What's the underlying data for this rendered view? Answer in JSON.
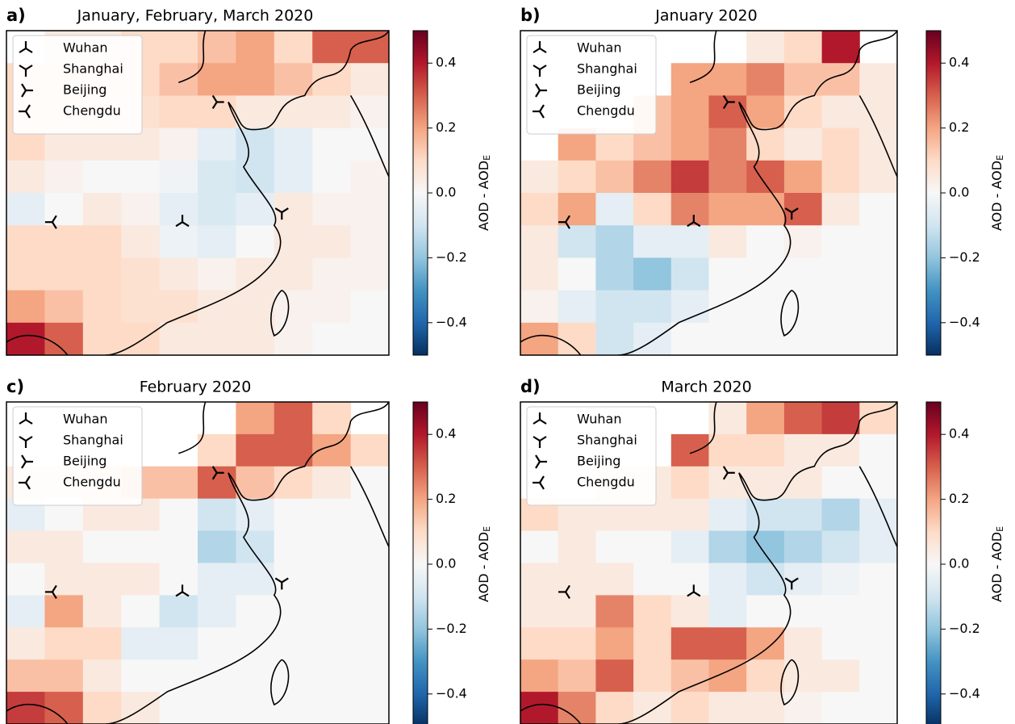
{
  "chart_data": [
    {
      "type": "heatmap",
      "panel": "a)",
      "title": "January, February, March 2020",
      "legend": [
        "Wuhan",
        "Shanghai",
        "Beijing",
        "Chengdu"
      ],
      "cbar_label": "AOD - AOD",
      "cbar_label_sub": "E",
      "clim": [
        -0.5,
        0.5
      ],
      "cticks": [
        {
          "value": -0.4,
          "label": "−0.4"
        },
        {
          "value": -0.2,
          "label": "−0.2"
        },
        {
          "value": 0,
          "label": "0.0"
        },
        {
          "value": 0.2,
          "label": "0.2"
        },
        {
          "value": 0.4,
          "label": "0.4"
        }
      ],
      "colormap": [
        "#053061",
        "#2166ac",
        "#4393c3",
        "#92c5de",
        "#d1e5f0",
        "#f7f7f7",
        "#fddbc7",
        "#f4a582",
        "#d6604d",
        "#b2182b",
        "#67001f"
      ],
      "values": [
        [
          null,
          0.05,
          0.05,
          0.1,
          0.1,
          0.15,
          0.2,
          0.1,
          0.3,
          0.3
        ],
        [
          0.1,
          0.1,
          0.1,
          0.1,
          0.15,
          0.2,
          0.2,
          0.15,
          0.1,
          0.05
        ],
        [
          0.1,
          0.1,
          0.1,
          0.08,
          0.1,
          0.1,
          0.05,
          0.05,
          0.05,
          0.02
        ],
        [
          0.1,
          0.05,
          0.05,
          0.05,
          0.02,
          -0.05,
          -0.1,
          -0.05,
          0,
          0
        ],
        [
          0.05,
          0.02,
          0,
          0,
          -0.02,
          -0.08,
          -0.1,
          -0.05,
          0,
          0.02
        ],
        [
          -0.05,
          0,
          0.05,
          0.02,
          -0.05,
          -0.08,
          -0.05,
          0.05,
          0.02,
          0.02
        ],
        [
          0.1,
          0.1,
          0.1,
          0.05,
          -0.03,
          -0.05,
          0,
          0.05,
          0.05,
          0.02
        ],
        [
          0.1,
          0.1,
          0.1,
          0.08,
          0.05,
          0.02,
          0.05,
          0.05,
          0.02,
          0.02
        ],
        [
          0.2,
          0.15,
          0.1,
          0.08,
          0.08,
          0.05,
          0.05,
          0.02,
          0.02,
          0
        ],
        [
          0.4,
          0.3,
          0.1,
          0.1,
          0.05,
          0.05,
          0.05,
          0.02,
          0,
          0
        ]
      ]
    },
    {
      "type": "heatmap",
      "panel": "b)",
      "title": "January 2020",
      "legend": [
        "Wuhan",
        "Shanghai",
        "Beijing",
        "Chengdu"
      ],
      "cbar_label": "AOD - AOD",
      "cbar_label_sub": "E",
      "clim": [
        -0.5,
        0.5
      ],
      "cticks": [
        {
          "value": -0.4,
          "label": "−0.4"
        },
        {
          "value": -0.2,
          "label": "−0.2"
        },
        {
          "value": 0,
          "label": "0.0"
        },
        {
          "value": 0.2,
          "label": "0.2"
        },
        {
          "value": 0.4,
          "label": "0.4"
        }
      ],
      "colormap": [
        "#053061",
        "#2166ac",
        "#4393c3",
        "#92c5de",
        "#d1e5f0",
        "#f7f7f7",
        "#fddbc7",
        "#f4a582",
        "#d6604d",
        "#b2182b",
        "#67001f"
      ],
      "values": [
        [
          null,
          null,
          null,
          null,
          null,
          null,
          0.05,
          0.1,
          0.4,
          null
        ],
        [
          null,
          null,
          null,
          null,
          0.2,
          0.2,
          0.25,
          0.15,
          0.15,
          0.05
        ],
        [
          null,
          null,
          null,
          0.15,
          0.2,
          0.3,
          0.2,
          0.1,
          0.05,
          0.05
        ],
        [
          null,
          0.2,
          0.1,
          0.15,
          0.2,
          0.25,
          0.1,
          0.05,
          0.1,
          0.05
        ],
        [
          0.05,
          0.1,
          0.15,
          0.25,
          0.35,
          0.25,
          0.3,
          0.2,
          0.1,
          0.05
        ],
        [
          0.1,
          0.2,
          -0.05,
          0.1,
          0.25,
          0.2,
          0.2,
          0.3,
          0.05,
          0
        ],
        [
          0.05,
          -0.1,
          -0.15,
          -0.05,
          -0.05,
          0.05,
          0,
          0.02,
          0,
          0
        ],
        [
          0.05,
          0,
          -0.15,
          -0.2,
          -0.1,
          0,
          0,
          0,
          0,
          0
        ],
        [
          0.02,
          -0.05,
          -0.1,
          -0.1,
          -0.05,
          0,
          0,
          0,
          0,
          0
        ],
        [
          0.2,
          0.1,
          -0.1,
          -0.05,
          0,
          0,
          0,
          0,
          0,
          0
        ]
      ]
    },
    {
      "type": "heatmap",
      "panel": "c)",
      "title": "February 2020",
      "legend": [
        "Wuhan",
        "Shanghai",
        "Beijing",
        "Chengdu"
      ],
      "cbar_label": "AOD - AOD",
      "cbar_label_sub": "E",
      "clim": [
        -0.5,
        0.5
      ],
      "cticks": [
        {
          "value": -0.4,
          "label": "−0.4"
        },
        {
          "value": -0.2,
          "label": "−0.2"
        },
        {
          "value": 0,
          "label": "0.0"
        },
        {
          "value": 0.2,
          "label": "0.2"
        },
        {
          "value": 0.4,
          "label": "0.4"
        }
      ],
      "colormap": [
        "#053061",
        "#2166ac",
        "#4393c3",
        "#92c5de",
        "#d1e5f0",
        "#f7f7f7",
        "#fddbc7",
        "#f4a582",
        "#d6604d",
        "#b2182b",
        "#67001f"
      ],
      "values": [
        [
          null,
          null,
          null,
          null,
          null,
          null,
          0.2,
          0.3,
          0.1,
          null
        ],
        [
          null,
          null,
          null,
          null,
          null,
          0.1,
          0.3,
          0.3,
          0.2,
          0.1
        ],
        [
          0.05,
          0.05,
          0.1,
          0.15,
          0.15,
          0.3,
          0.15,
          0.1,
          0.05,
          0
        ],
        [
          -0.05,
          0,
          0.05,
          0.05,
          0,
          -0.1,
          -0.05,
          0,
          0,
          0
        ],
        [
          0.05,
          0.05,
          0,
          0,
          0,
          -0.15,
          -0.1,
          0,
          0,
          0
        ],
        [
          0,
          0.05,
          0.05,
          0.05,
          0,
          -0.05,
          -0.05,
          0,
          0,
          0
        ],
        [
          -0.05,
          0.2,
          0.05,
          0,
          -0.1,
          -0.05,
          0,
          0,
          0,
          0
        ],
        [
          0.05,
          0.1,
          0.1,
          -0.05,
          -0.05,
          0,
          0,
          0,
          0,
          0
        ],
        [
          0.15,
          0.15,
          0.05,
          0,
          0,
          0,
          0,
          0,
          0,
          0
        ],
        [
          0.35,
          0.3,
          0.1,
          0.05,
          0,
          0,
          0,
          0,
          0,
          0
        ]
      ]
    },
    {
      "type": "heatmap",
      "panel": "d)",
      "title": "March 2020",
      "legend": [
        "Wuhan",
        "Shanghai",
        "Beijing",
        "Chengdu"
      ],
      "cbar_label": "AOD - AOD",
      "cbar_label_sub": "E",
      "clim": [
        -0.5,
        0.5
      ],
      "cticks": [
        {
          "value": -0.4,
          "label": "−0.4"
        },
        {
          "value": -0.2,
          "label": "−0.2"
        },
        {
          "value": 0,
          "label": "0.0"
        },
        {
          "value": 0.2,
          "label": "0.2"
        },
        {
          "value": 0.4,
          "label": "0.4"
        }
      ],
      "colormap": [
        "#053061",
        "#2166ac",
        "#4393c3",
        "#92c5de",
        "#d1e5f0",
        "#f7f7f7",
        "#fddbc7",
        "#f4a582",
        "#d6604d",
        "#b2182b",
        "#67001f"
      ],
      "values": [
        [
          null,
          null,
          null,
          null,
          null,
          0.05,
          0.2,
          0.3,
          0.35,
          0.1
        ],
        [
          null,
          null,
          null,
          null,
          0.3,
          0.1,
          0.1,
          0.05,
          0.05,
          0
        ],
        [
          null,
          null,
          0.05,
          0.05,
          0.1,
          0.05,
          0.05,
          0.05,
          0,
          0
        ],
        [
          0.1,
          0.05,
          0.05,
          0.05,
          0.05,
          -0.05,
          -0.1,
          -0.1,
          -0.15,
          -0.05
        ],
        [
          0,
          0.05,
          0,
          0,
          -0.05,
          -0.15,
          -0.2,
          -0.15,
          -0.1,
          -0.05
        ],
        [
          0.05,
          0.05,
          0.05,
          0,
          0,
          -0.05,
          -0.1,
          -0.05,
          -0.02,
          0
        ],
        [
          0.05,
          0.05,
          0.25,
          0.1,
          0.05,
          -0.05,
          0,
          0,
          0,
          0
        ],
        [
          0.1,
          0.1,
          0.2,
          0.1,
          0.3,
          0.3,
          0.2,
          0.05,
          0,
          0
        ],
        [
          0.2,
          0.15,
          0.3,
          0.1,
          0.15,
          0.2,
          0.1,
          0.05,
          0.05,
          0
        ],
        [
          0.4,
          0.25,
          0.1,
          0.05,
          0.1,
          0.05,
          0.05,
          0.02,
          0,
          0
        ]
      ]
    }
  ]
}
